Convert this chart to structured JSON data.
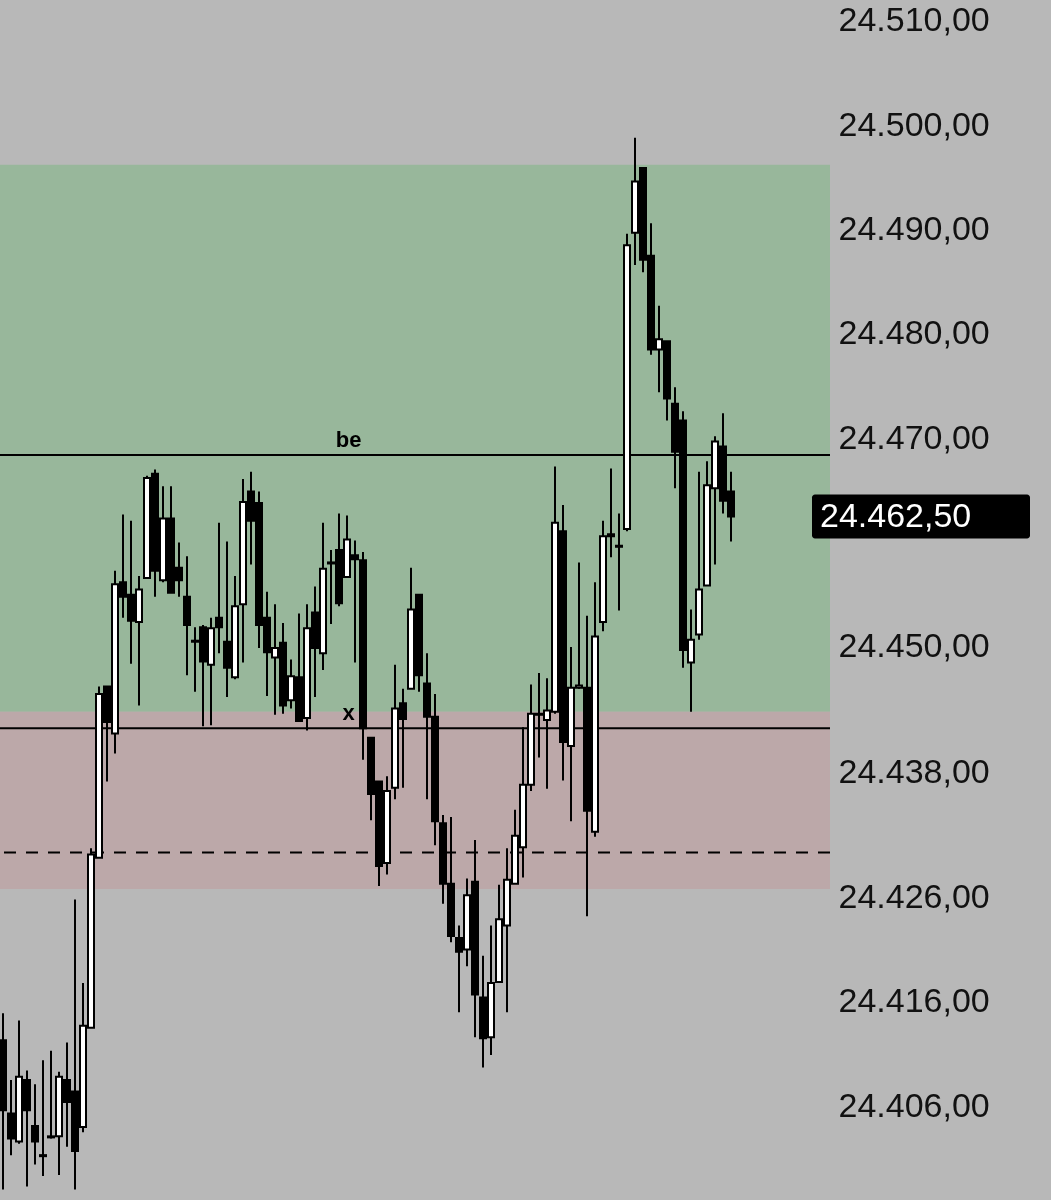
{
  "chart_data": {
    "type": "candlestick",
    "tick_labels": "y",
    "categories": [
      null,
      null,
      null,
      null,
      null,
      null,
      null,
      null,
      null,
      null,
      null,
      null,
      null,
      null,
      null,
      null,
      null,
      null,
      null,
      null,
      null,
      null,
      null,
      null,
      null,
      null,
      null,
      null,
      null,
      null,
      null,
      null,
      null,
      null,
      null,
      null,
      null,
      null,
      null,
      null,
      null,
      null,
      null,
      null,
      null,
      null,
      null,
      null,
      null,
      null,
      null,
      null,
      null,
      null,
      null,
      null,
      null,
      null,
      null,
      null,
      null,
      null,
      null,
      null,
      null,
      null,
      null,
      null,
      null,
      null,
      null,
      null,
      null,
      null,
      null,
      null,
      null,
      null,
      null,
      null,
      null,
      null,
      null,
      null,
      null,
      null,
      null,
      null,
      null,
      null,
      null,
      null,
      null,
      null,
      null,
      null,
      null,
      null,
      null,
      null,
      null,
      null,
      null,
      null
    ],
    "ohlc": [
      [
        24412.3,
        24414.9,
        24398,
        24405.6
      ],
      [
        24405.3,
        24408.5,
        24401.3,
        24402.9
      ],
      [
        24402.6,
        24414.2,
        24402.4,
        24408.8
      ],
      [
        24408.5,
        24409.4,
        24398.3,
        24405.6
      ],
      [
        24404.1,
        24408.1,
        24400.4,
        24402.6
      ],
      [
        24401.3,
        24410.4,
        24399.3,
        24401.2
      ],
      [
        24403.0,
        24411.3,
        24402.9,
        24403.1
      ],
      [
        24403.1,
        24409.3,
        24399.4,
        24408.8
      ],
      [
        24408.5,
        24412.1,
        24402.1,
        24406.4
      ],
      [
        24407.4,
        24425.8,
        24398,
        24401.7
      ],
      [
        24404.0,
        24417.8,
        24403.5,
        24413.7
      ],
      [
        24413.5,
        24430.7,
        24413.5,
        24430.1
      ],
      [
        24429.8,
        24446.2,
        24429.8,
        24445.5
      ],
      [
        24446.2,
        24446.2,
        24437.1,
        24442.8
      ],
      [
        24441.7,
        24457.3,
        24439.8,
        24456.0
      ],
      [
        24456.2,
        24462.7,
        24452.8,
        24454.8
      ],
      [
        24455.0,
        24462.1,
        24448.4,
        24452.5
      ],
      [
        24452.4,
        24456.8,
        24444.4,
        24455.5
      ],
      [
        24456.6,
        24466.4,
        24456.6,
        24466.2
      ],
      [
        24466.6,
        24467.0,
        24454.8,
        24457.3
      ],
      [
        24456.4,
        24465.4,
        24456.2,
        24462.3
      ],
      [
        24462.3,
        24465.4,
        24455.2,
        24455.2
      ],
      [
        24457.6,
        24460.0,
        24454.8,
        24456.4
      ],
      [
        24454.8,
        24458.7,
        24447.3,
        24452.1
      ],
      [
        24450.6,
        24451.9,
        24445.7,
        24450.5
      ],
      [
        24451.9,
        24452.1,
        24442.4,
        24448.6
      ],
      [
        24448.3,
        24452.8,
        24442.5,
        24451.8
      ],
      [
        24452.8,
        24461.9,
        24449.4,
        24451.9
      ],
      [
        24450.5,
        24460.1,
        24445.2,
        24448.0
      ],
      [
        24447.1,
        24456.8,
        24446.9,
        24453.9
      ],
      [
        24454.1,
        24466.1,
        24448.5,
        24463.9
      ],
      [
        24464.9,
        24466.8,
        24457.9,
        24462.1
      ],
      [
        24463.8,
        24464.9,
        24449.9,
        24452.1
      ],
      [
        24452.8,
        24455.3,
        24445.3,
        24449.5
      ],
      [
        24449.0,
        24454.1,
        24443.5,
        24449.9
      ],
      [
        24450.4,
        24452.3,
        24443.6,
        24444.4
      ],
      [
        24444.9,
        24448.8,
        24444.1,
        24447.2
      ],
      [
        24447.1,
        24453.2,
        24442.9,
        24442.9
      ],
      [
        24443.2,
        24454.1,
        24442.0,
        24451.8
      ],
      [
        24453.3,
        24455.8,
        24445.2,
        24449.9
      ],
      [
        24449.4,
        24461.9,
        24447.8,
        24457.5
      ],
      [
        24458.1,
        24459.3,
        24452.2,
        24458.0
      ],
      [
        24459.3,
        24462.8,
        24453.9,
        24454.2
      ],
      [
        24456.7,
        24462.6,
        24456.7,
        24460.3
      ],
      [
        24458.8,
        24460.2,
        24448.5,
        24458.4
      ],
      [
        24458.3,
        24459.1,
        24439.2,
        24442.2
      ],
      [
        24441.3,
        24441.3,
        24433.4,
        24435.9
      ],
      [
        24437.1,
        24437.1,
        24427.1,
        24429.0
      ],
      [
        24429.3,
        24437.6,
        24428.2,
        24436.2
      ],
      [
        24436.5,
        24448.3,
        24435.4,
        24444.1
      ],
      [
        24444.6,
        24446.0,
        24436.5,
        24443.1
      ],
      [
        24446.0,
        24457.6,
        24446.0,
        24453.6
      ],
      [
        24455.0,
        24455.0,
        24445.7,
        24447.3
      ],
      [
        24446.5,
        24449.4,
        24435.4,
        24443.3
      ],
      [
        24443.3,
        24445.5,
        24431.0,
        24433.3
      ],
      [
        24433.1,
        24433.9,
        24425.4,
        24427.3
      ],
      [
        24427.3,
        24433.7,
        24421.7,
        24422.3
      ],
      [
        24422.1,
        24423.3,
        24415.0,
        24420.8
      ],
      [
        24421.0,
        24427.8,
        24419.4,
        24426.2
      ],
      [
        24427.5,
        24431.5,
        24412.6,
        24416.7
      ],
      [
        24416.4,
        24420.4,
        24409.7,
        24412.5
      ],
      [
        24412.6,
        24423.3,
        24410.9,
        24417.8
      ],
      [
        24417.9,
        24427.2,
        24417.8,
        24423.9
      ],
      [
        24423.3,
        24430.7,
        24415.0,
        24427.7
      ],
      [
        24427.3,
        24434.4,
        24427.3,
        24431.9
      ],
      [
        24430.8,
        24442.3,
        24427.9,
        24436.8
      ],
      [
        24436.8,
        24446.4,
        24436.2,
        24443.6
      ],
      [
        24443.5,
        24447.5,
        24439.4,
        24443.6
      ],
      [
        24443.0,
        24447.0,
        24436.4,
        24443.9
      ],
      [
        24443.8,
        24467.3,
        24443.6,
        24461.9
      ],
      [
        24461.1,
        24463.6,
        24437.2,
        24440.9
      ],
      [
        24440.5,
        24450.0,
        24433.3,
        24446.1
      ],
      [
        24446.1,
        24458.1,
        24446.0,
        24446.3
      ],
      [
        24446.1,
        24453.0,
        24424.2,
        24434.3
      ],
      [
        24432.3,
        24456.2,
        24431.8,
        24451.0
      ],
      [
        24452.4,
        24462.1,
        24451.5,
        24460.6
      ],
      [
        24460.6,
        24467.1,
        24458.6,
        24460.8
      ],
      [
        24459.6,
        24462.8,
        24453.5,
        24459.7
      ],
      [
        24461.3,
        24489.6,
        24461.1,
        24488.5
      ],
      [
        24489.7,
        24498.8,
        24486.6,
        24494.6
      ],
      [
        24495.9,
        24495.9,
        24485.9,
        24487.1
      ],
      [
        24487.5,
        24490.6,
        24478.0,
        24478.5
      ],
      [
        24478.5,
        24482.7,
        24474.4,
        24479.5
      ],
      [
        24479.3,
        24479.3,
        24471.7,
        24473.8
      ],
      [
        24473.3,
        24474.9,
        24465.2,
        24468.7
      ],
      [
        24471.7,
        24472.6,
        24448.0,
        24449.7
      ],
      [
        24448.5,
        24453.6,
        24443.8,
        24450.7
      ],
      [
        24451.2,
        24466.8,
        24450.7,
        24455.5
      ],
      [
        24455.9,
        24467.8,
        24455.9,
        24465.5
      ],
      [
        24465.2,
        24470.2,
        24457.9,
        24469.7
      ],
      [
        24469.2,
        24472.4,
        24462.8,
        24464.0
      ],
      [
        24464.9,
        24466.8,
        24460.1,
        24462.5
      ],
      null,
      null,
      null,
      null,
      null,
      null,
      null,
      null,
      null,
      null,
      null,
      null
    ],
    "ylim": [
      24397,
      24512
    ],
    "yticks": [
      {
        "value": 24510,
        "label": "24.510,00"
      },
      {
        "value": 24500,
        "label": "24.500,00"
      },
      {
        "value": 24490,
        "label": "24.490,00"
      },
      {
        "value": 24480,
        "label": "24.480,00"
      },
      {
        "value": 24470,
        "label": "24.470,00"
      },
      {
        "value": 24450,
        "label": "24.450,00"
      },
      {
        "value": 24438,
        "label": "24.438,00"
      },
      {
        "value": 24426,
        "label": "24.426,00"
      },
      {
        "value": 24416,
        "label": "24.416,00"
      },
      {
        "value": 24406,
        "label": "24.406,00"
      }
    ],
    "bands": [
      {
        "axis": "y",
        "from": 24443.8,
        "to": 24496.2,
        "color": "#98b79b"
      },
      {
        "axis": "y",
        "from": 24426.8,
        "to": 24443.8,
        "color": "#bca8a9"
      }
    ],
    "ref_lines": [
      {
        "axis": "y",
        "value": 24468.4,
        "label": "be",
        "color": "#000000",
        "line_style": "solid"
      },
      {
        "axis": "y",
        "value": 24442.2,
        "label": "x",
        "color": "#000000",
        "line_style": "solid"
      },
      {
        "axis": "y",
        "value": 24430.3,
        "color": "#000000",
        "line_style": "dashed"
      }
    ],
    "annotations": [
      "24.462,50"
    ]
  }
}
